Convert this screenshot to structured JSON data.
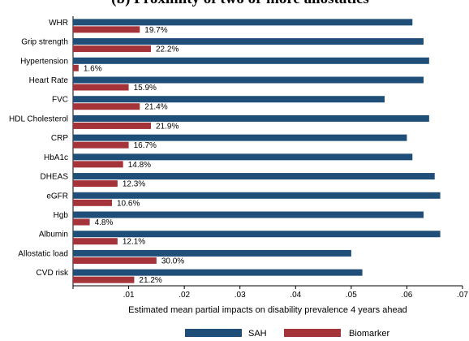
{
  "chart_data": {
    "type": "bar",
    "orientation": "horizontal",
    "title": "(b) Proximity of two or more allostatics",
    "xlabel": "Estimated mean partial impacts on disability prevalence 4 years ahead",
    "xlim": [
      0,
      0.07
    ],
    "xticks": [
      "0",
      ".01",
      ".02",
      ".03",
      ".04",
      ".05",
      ".06",
      ".07"
    ],
    "xtick_values": [
      0,
      0.01,
      0.02,
      0.03,
      0.04,
      0.05,
      0.06,
      0.07
    ],
    "grid": false,
    "legend_position": "bottom",
    "categories": [
      "WHR",
      "Grip strength",
      "Hypertension",
      "Heart Rate",
      "FVC",
      "HDL Cholesterol",
      "CRP",
      "HbA1c",
      "DHEAS",
      "eGFR",
      "Hgb",
      "Albumin",
      "Allostatic load",
      "CVD risk"
    ],
    "series": [
      {
        "name": "SAH",
        "color": "#1f4e79",
        "values": [
          0.061,
          0.063,
          0.064,
          0.063,
          0.056,
          0.064,
          0.06,
          0.061,
          0.065,
          0.066,
          0.063,
          0.066,
          0.05,
          0.052
        ]
      },
      {
        "name": "Biomarker",
        "color": "#a4343a",
        "values": [
          0.012,
          0.014,
          0.001,
          0.01,
          0.012,
          0.014,
          0.01,
          0.009,
          0.008,
          0.007,
          0.003,
          0.008,
          0.015,
          0.011
        ],
        "labels": [
          "19.7%",
          "22.2%",
          "1.6%",
          "15.9%",
          "21.4%",
          "21.9%",
          "16.7%",
          "14.8%",
          "12.3%",
          "10.6%",
          "4.8%",
          "12.1%",
          "30.0%",
          "21.2%"
        ]
      }
    ]
  }
}
